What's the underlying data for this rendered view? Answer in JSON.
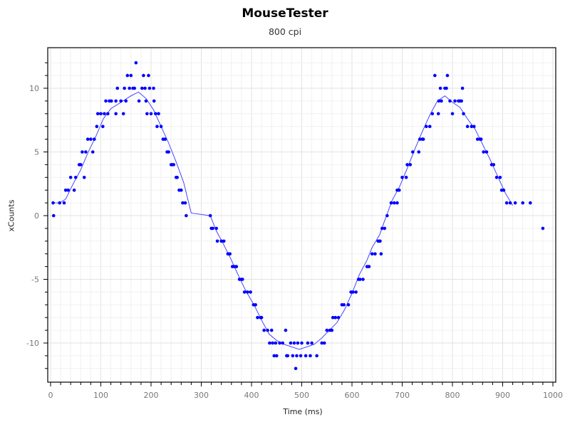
{
  "chart_data": {
    "type": "scatter",
    "title": "MouseTester",
    "subtitle": "800 cpi",
    "xlabel": "Time (ms)",
    "ylabel": "xCounts",
    "xlim": [
      0,
      1000
    ],
    "ylim": [
      -13,
      13
    ],
    "xticks": [
      0,
      100,
      200,
      300,
      400,
      500,
      600,
      700,
      800,
      900,
      1000
    ],
    "yticks": [
      -10,
      -5,
      0,
      5,
      10
    ],
    "grid": true,
    "legend": null,
    "series": [
      {
        "name": "xCounts",
        "style": "markers",
        "color": "#0000ff",
        "points": [
          [
            5,
            1
          ],
          [
            6,
            0
          ],
          [
            18,
            1
          ],
          [
            27,
            1
          ],
          [
            30,
            2
          ],
          [
            35,
            2
          ],
          [
            40,
            3
          ],
          [
            47,
            2
          ],
          [
            50,
            3
          ],
          [
            57,
            4
          ],
          [
            60,
            4
          ],
          [
            63,
            5
          ],
          [
            67,
            3
          ],
          [
            70,
            5
          ],
          [
            74,
            6
          ],
          [
            80,
            6
          ],
          [
            84,
            5
          ],
          [
            87,
            6
          ],
          [
            92,
            7
          ],
          [
            94,
            8
          ],
          [
            100,
            8
          ],
          [
            104,
            7
          ],
          [
            107,
            8
          ],
          [
            110,
            9
          ],
          [
            114,
            8
          ],
          [
            117,
            9
          ],
          [
            121,
            9
          ],
          [
            130,
            9
          ],
          [
            130,
            8
          ],
          [
            133,
            10
          ],
          [
            140,
            9
          ],
          [
            145,
            8
          ],
          [
            147,
            10
          ],
          [
            150,
            9
          ],
          [
            153,
            11
          ],
          [
            157,
            10
          ],
          [
            160,
            11
          ],
          [
            164,
            10
          ],
          [
            170,
            12
          ],
          [
            167,
            10
          ],
          [
            176,
            9
          ],
          [
            182,
            10
          ],
          [
            185,
            11
          ],
          [
            188,
            10
          ],
          [
            190,
            9
          ],
          [
            192,
            8
          ],
          [
            195,
            11
          ],
          [
            197,
            10
          ],
          [
            205,
            10
          ],
          [
            200,
            8
          ],
          [
            206,
            9
          ],
          [
            209,
            8
          ],
          [
            212,
            7
          ],
          [
            215,
            8
          ],
          [
            220,
            7
          ],
          [
            224,
            6
          ],
          [
            228,
            6
          ],
          [
            232,
            5
          ],
          [
            235,
            5
          ],
          [
            240,
            4
          ],
          [
            242,
            4
          ],
          [
            245,
            4
          ],
          [
            250,
            3
          ],
          [
            252,
            3
          ],
          [
            256,
            2
          ],
          [
            260,
            2
          ],
          [
            263,
            1
          ],
          [
            268,
            1
          ],
          [
            270,
            0
          ],
          [
            318,
            0
          ],
          [
            320,
            -1
          ],
          [
            323,
            -1
          ],
          [
            330,
            -1
          ],
          [
            332,
            -2
          ],
          [
            340,
            -2
          ],
          [
            345,
            -2
          ],
          [
            353,
            -3
          ],
          [
            357,
            -3
          ],
          [
            362,
            -4
          ],
          [
            366,
            -4
          ],
          [
            370,
            -4
          ],
          [
            376,
            -5
          ],
          [
            380,
            -5
          ],
          [
            382,
            -5
          ],
          [
            386,
            -6
          ],
          [
            392,
            -6
          ],
          [
            398,
            -6
          ],
          [
            404,
            -7
          ],
          [
            408,
            -7
          ],
          [
            412,
            -8
          ],
          [
            418,
            -8
          ],
          [
            420,
            -8
          ],
          [
            425,
            -9
          ],
          [
            432,
            -9
          ],
          [
            440,
            -9
          ],
          [
            436,
            -10
          ],
          [
            442,
            -10
          ],
          [
            448,
            -10
          ],
          [
            445,
            -11
          ],
          [
            450,
            -11
          ],
          [
            456,
            -10
          ],
          [
            462,
            -10
          ],
          [
            468,
            -9
          ],
          [
            478,
            -10
          ],
          [
            485,
            -10
          ],
          [
            492,
            -10
          ],
          [
            500,
            -10
          ],
          [
            512,
            -10
          ],
          [
            520,
            -10
          ],
          [
            470,
            -11
          ],
          [
            472,
            -11
          ],
          [
            482,
            -11
          ],
          [
            490,
            -11
          ],
          [
            498,
            -11
          ],
          [
            508,
            -11
          ],
          [
            517,
            -11
          ],
          [
            530,
            -11
          ],
          [
            488,
            -12
          ],
          [
            540,
            -10
          ],
          [
            545,
            -10
          ],
          [
            550,
            -9
          ],
          [
            556,
            -9
          ],
          [
            560,
            -9
          ],
          [
            562,
            -8
          ],
          [
            567,
            -8
          ],
          [
            573,
            -8
          ],
          [
            580,
            -7
          ],
          [
            584,
            -7
          ],
          [
            593,
            -7
          ],
          [
            598,
            -6
          ],
          [
            602,
            -6
          ],
          [
            608,
            -6
          ],
          [
            613,
            -5
          ],
          [
            616,
            -5
          ],
          [
            622,
            -5
          ],
          [
            630,
            -4
          ],
          [
            634,
            -4
          ],
          [
            640,
            -3
          ],
          [
            646,
            -3
          ],
          [
            652,
            -2
          ],
          [
            655,
            -2
          ],
          [
            656,
            -2
          ],
          [
            658,
            -3
          ],
          [
            660,
            -1
          ],
          [
            665,
            -1
          ],
          [
            670,
            0
          ],
          [
            678,
            1
          ],
          [
            684,
            1
          ],
          [
            690,
            1
          ],
          [
            690,
            2
          ],
          [
            694,
            2
          ],
          [
            700,
            3
          ],
          [
            708,
            3
          ],
          [
            710,
            4
          ],
          [
            716,
            4
          ],
          [
            721,
            5
          ],
          [
            733,
            5
          ],
          [
            740,
            6
          ],
          [
            742,
            6
          ],
          [
            748,
            7
          ],
          [
            755,
            7
          ],
          [
            760,
            8
          ],
          [
            772,
            8
          ],
          [
            773,
            9
          ],
          [
            778,
            9
          ],
          [
            785,
            10
          ],
          [
            788,
            10
          ],
          [
            795,
            9
          ],
          [
            800,
            8
          ],
          [
            805,
            9
          ],
          [
            812,
            9
          ],
          [
            818,
            9
          ],
          [
            822,
            8
          ],
          [
            830,
            7
          ],
          [
            838,
            7
          ],
          [
            843,
            7
          ],
          [
            850,
            6
          ],
          [
            855,
            6
          ],
          [
            857,
            6
          ],
          [
            862,
            5
          ],
          [
            868,
            5
          ],
          [
            878,
            4
          ],
          [
            882,
            4
          ],
          [
            888,
            3
          ],
          [
            895,
            3
          ],
          [
            898,
            2
          ],
          [
            902,
            2
          ],
          [
            908,
            1
          ],
          [
            915,
            1
          ],
          [
            925,
            1
          ],
          [
            940,
            1
          ],
          [
            955,
            1
          ],
          [
            980,
            -1
          ],
          [
            776,
            10
          ],
          [
            790,
            11
          ],
          [
            815,
            9
          ],
          [
            820,
            10
          ],
          [
            765,
            11
          ],
          [
            735,
            6
          ]
        ]
      },
      {
        "name": "xCounts (smoothed)",
        "style": "line",
        "color": "#3333ff",
        "points": [
          [
            5,
            1
          ],
          [
            18,
            1
          ],
          [
            30,
            1.3
          ],
          [
            45,
            2.5
          ],
          [
            60,
            3.6
          ],
          [
            75,
            5
          ],
          [
            90,
            6.2
          ],
          [
            105,
            7.6
          ],
          [
            120,
            8.4
          ],
          [
            140,
            8.9
          ],
          [
            160,
            9.4
          ],
          [
            175,
            9.7
          ],
          [
            190,
            9.2
          ],
          [
            205,
            8.3
          ],
          [
            220,
            7
          ],
          [
            235,
            5.7
          ],
          [
            250,
            4.2
          ],
          [
            265,
            2.6
          ],
          [
            280,
            0.2
          ],
          [
            318,
            0
          ],
          [
            330,
            -1.2
          ],
          [
            345,
            -2.3
          ],
          [
            360,
            -3.5
          ],
          [
            375,
            -4.8
          ],
          [
            390,
            -6
          ],
          [
            405,
            -7
          ],
          [
            420,
            -8.2
          ],
          [
            435,
            -9.3
          ],
          [
            450,
            -9.8
          ],
          [
            465,
            -10.1
          ],
          [
            480,
            -10.3
          ],
          [
            495,
            -10.5
          ],
          [
            510,
            -10.3
          ],
          [
            525,
            -10.1
          ],
          [
            540,
            -9.6
          ],
          [
            555,
            -9
          ],
          [
            570,
            -8.4
          ],
          [
            585,
            -7.4
          ],
          [
            600,
            -6.1
          ],
          [
            615,
            -4.6
          ],
          [
            630,
            -3.5
          ],
          [
            640,
            -2.5
          ],
          [
            655,
            -1.5
          ],
          [
            665,
            -0.4
          ],
          [
            680,
            1.2
          ],
          [
            695,
            2.3
          ],
          [
            710,
            3.7
          ],
          [
            725,
            5.2
          ],
          [
            740,
            6.6
          ],
          [
            755,
            7.9
          ],
          [
            770,
            9
          ],
          [
            785,
            9.4
          ],
          [
            800,
            8.9
          ],
          [
            815,
            8.5
          ],
          [
            830,
            7.6
          ],
          [
            845,
            6.8
          ],
          [
            860,
            5.6
          ],
          [
            875,
            4.4
          ],
          [
            890,
            3.1
          ],
          [
            905,
            1.8
          ],
          [
            920,
            0.8
          ]
        ]
      }
    ]
  }
}
